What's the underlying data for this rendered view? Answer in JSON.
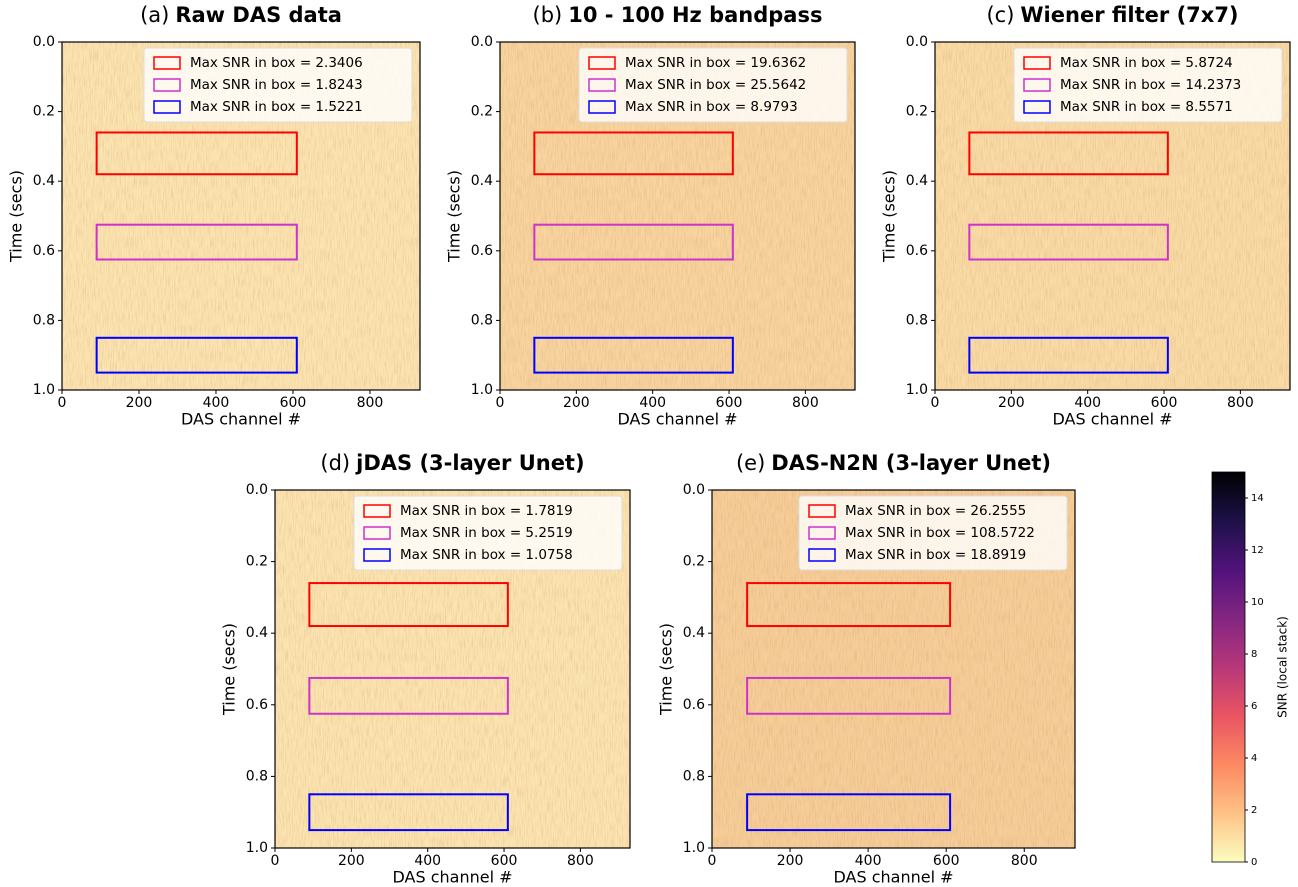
{
  "chart_data": [
    {
      "type": "heatmap",
      "panel_label": "(a)",
      "title": "Raw DAS data",
      "xlabel": "DAS channel #",
      "ylabel": "Time (secs)",
      "xlim": [
        0,
        930
      ],
      "ylim": [
        1.0,
        0.0
      ],
      "xticks": [
        0,
        200,
        400,
        600,
        800
      ],
      "yticks": [
        {
          "value": 1.0,
          "label": "1.0"
        },
        0.8,
        0.6,
        0.4,
        0.2,
        {
          "value": 0.0,
          "label": "0.0"
        }
      ],
      "color": "#fbe4b0",
      "legend": "upper right",
      "series": [
        {
          "name": "Max SNR in box = 2.3406",
          "color": "#ff0000",
          "x": [
            90,
            610
          ],
          "y": [
            0.26,
            0.38
          ]
        },
        {
          "name": "Max SNR in box = 1.8243",
          "color": "#cc33cc",
          "x": [
            90,
            610
          ],
          "y": [
            0.525,
            0.625
          ]
        },
        {
          "name": "Max SNR in box = 1.5221",
          "color": "#0000ff",
          "x": [
            90,
            610
          ],
          "y": [
            0.85,
            0.95
          ]
        }
      ]
    },
    {
      "type": "heatmap",
      "panel_label": "(b)",
      "title": "10 - 100 Hz bandpass",
      "xlabel": "DAS channel #",
      "ylabel": "Time (secs)",
      "xlim": [
        0,
        930
      ],
      "ylim": [
        1.0,
        0.0
      ],
      "xticks": [
        0,
        200,
        400,
        600,
        800
      ],
      "yticks": [
        {
          "value": 1.0,
          "label": "1.0"
        },
        0.8,
        0.6,
        0.4,
        0.2,
        {
          "value": 0.0,
          "label": "0.0"
        }
      ],
      "color": "#f8d49e",
      "legend": "upper right",
      "series": [
        {
          "name": "Max SNR in box = 19.6362",
          "color": "#ff0000",
          "x": [
            90,
            610
          ],
          "y": [
            0.26,
            0.38
          ]
        },
        {
          "name": "Max SNR in box = 25.5642",
          "color": "#cc33cc",
          "x": [
            90,
            610
          ],
          "y": [
            0.525,
            0.625
          ]
        },
        {
          "name": "Max SNR in box = 8.9793",
          "color": "#0000ff",
          "x": [
            90,
            610
          ],
          "y": [
            0.85,
            0.95
          ]
        }
      ]
    },
    {
      "type": "heatmap",
      "panel_label": "(c)",
      "title": "Wiener filter (7x7)",
      "xlabel": "DAS channel #",
      "ylabel": "Time (secs)",
      "xlim": [
        0,
        930
      ],
      "ylim": [
        1.0,
        0.0
      ],
      "xticks": [
        0,
        200,
        400,
        600,
        800
      ],
      "yticks": [
        {
          "value": 1.0,
          "label": "1.0"
        },
        0.8,
        0.6,
        0.4,
        0.2,
        {
          "value": 0.0,
          "label": "0.0"
        }
      ],
      "color": "#f9dba6",
      "legend": "upper right",
      "series": [
        {
          "name": "Max SNR in box = 5.8724",
          "color": "#ff0000",
          "x": [
            90,
            610
          ],
          "y": [
            0.26,
            0.38
          ]
        },
        {
          "name": "Max SNR in box = 14.2373",
          "color": "#cc33cc",
          "x": [
            90,
            610
          ],
          "y": [
            0.525,
            0.625
          ]
        },
        {
          "name": "Max SNR in box = 8.5571",
          "color": "#0000ff",
          "x": [
            90,
            610
          ],
          "y": [
            0.85,
            0.95
          ]
        }
      ]
    },
    {
      "type": "heatmap",
      "panel_label": "(d)",
      "title": "jDAS (3-layer Unet)",
      "xlabel": "DAS channel #",
      "ylabel": "Time (secs)",
      "xlim": [
        0,
        930
      ],
      "ylim": [
        1.0,
        0.0
      ],
      "xticks": [
        0,
        200,
        400,
        600,
        800
      ],
      "yticks": [
        {
          "value": 1.0,
          "label": "1.0"
        },
        0.8,
        0.6,
        0.4,
        0.2,
        {
          "value": 0.0,
          "label": "0.0"
        }
      ],
      "color": "#fbe4b0",
      "legend": "upper right",
      "series": [
        {
          "name": "Max SNR in box = 1.7819",
          "color": "#ff0000",
          "x": [
            90,
            610
          ],
          "y": [
            0.26,
            0.38
          ]
        },
        {
          "name": "Max SNR in box = 5.2519",
          "color": "#cc33cc",
          "x": [
            90,
            610
          ],
          "y": [
            0.525,
            0.625
          ]
        },
        {
          "name": "Max SNR in box = 1.0758",
          "color": "#0000ff",
          "x": [
            90,
            610
          ],
          "y": [
            0.85,
            0.95
          ]
        }
      ]
    },
    {
      "type": "heatmap",
      "panel_label": "(e)",
      "title": "DAS-N2N (3-layer Unet)",
      "xlabel": "DAS channel #",
      "ylabel": "Time (secs)",
      "xlim": [
        0,
        930
      ],
      "ylim": [
        1.0,
        0.0
      ],
      "xticks": [
        0,
        200,
        400,
        600,
        800
      ],
      "yticks": [
        {
          "value": 1.0,
          "label": "1.0"
        },
        0.8,
        0.6,
        0.4,
        0.2,
        {
          "value": 0.0,
          "label": "0.0"
        }
      ],
      "color": "#f6cd98",
      "legend": "upper right",
      "series": [
        {
          "name": "Max SNR in box = 26.2555",
          "color": "#ff0000",
          "x": [
            90,
            610
          ],
          "y": [
            0.26,
            0.38
          ]
        },
        {
          "name": "Max SNR in box = 108.5722",
          "color": "#cc33cc",
          "x": [
            90,
            610
          ],
          "y": [
            0.525,
            0.625
          ]
        },
        {
          "name": "Max SNR in box = 18.8919",
          "color": "#0000ff",
          "x": [
            90,
            610
          ],
          "y": [
            0.85,
            0.95
          ]
        }
      ]
    },
    {
      "type": "colorbar",
      "label": "SNR (local stack)",
      "ylim": [
        0,
        15
      ],
      "yticks": [
        0,
        2,
        4,
        6,
        8,
        10,
        12,
        14
      ],
      "colors": [
        "#fcfdbf",
        "#fec287",
        "#fc8961",
        "#e95462",
        "#b73779",
        "#832681",
        "#51127c",
        "#1d1147",
        "#000004"
      ]
    }
  ]
}
